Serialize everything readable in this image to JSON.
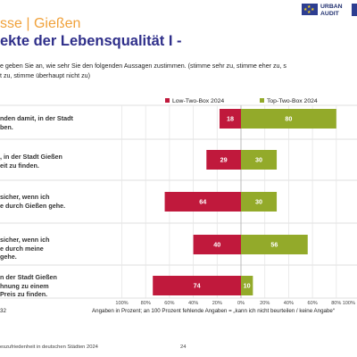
{
  "header": {
    "subtitle": "sse | Gießen",
    "title": "ekte der Lebensqualität I -"
  },
  "logo": {
    "line1": "URBAN",
    "line2": "AUDIT"
  },
  "question": {
    "line1": "e geben Sie an, wie sehr Sie den folgenden Aussagen zustimmen.  (stimme sehr zu, stimme eher zu, s",
    "line2": "t zu, stimme überhaupt nicht zu)"
  },
  "footer": {
    "page_code": "32",
    "note": "Angaben in Prozent; an 100 Prozent fehlende Angaben = „kann ich nicht beurteilen / keine Angabe“",
    "source": "eszufriedenheit in deutschen Städten 2024",
    "page_number": "24"
  },
  "colors": {
    "low": "#c0193c",
    "top": "#93aa2a",
    "title": "#2f2f8a",
    "subtitle": "#f0a13a"
  },
  "chart_data": {
    "type": "bar",
    "orientation": "horizontal-diverging",
    "categories": [
      "nden damit, in der Stadt\nben.",
      ", in der Stadt Gießen\neit zu finden.",
      "sicher, wenn ich\ne durch Gießen gehe.",
      "sicher, wenn ich\ne durch meine\ngehe.",
      "n der Stadt Gießen\nhnung zu einem\nPreis zu finden."
    ],
    "series": [
      {
        "name": "Low-Two-Box 2024",
        "values": [
          18,
          29,
          64,
          40,
          74
        ]
      },
      {
        "name": "Top-Two-Box 2024",
        "values": [
          80,
          30,
          30,
          56,
          10
        ]
      }
    ],
    "x_ticks": [
      "100%",
      "80%",
      "60%",
      "40%",
      "20%",
      "0%",
      "20%",
      "40%",
      "60%",
      "80%",
      "100%"
    ],
    "xlim": [
      -100,
      100
    ],
    "legend_position": "top",
    "grid": true
  }
}
